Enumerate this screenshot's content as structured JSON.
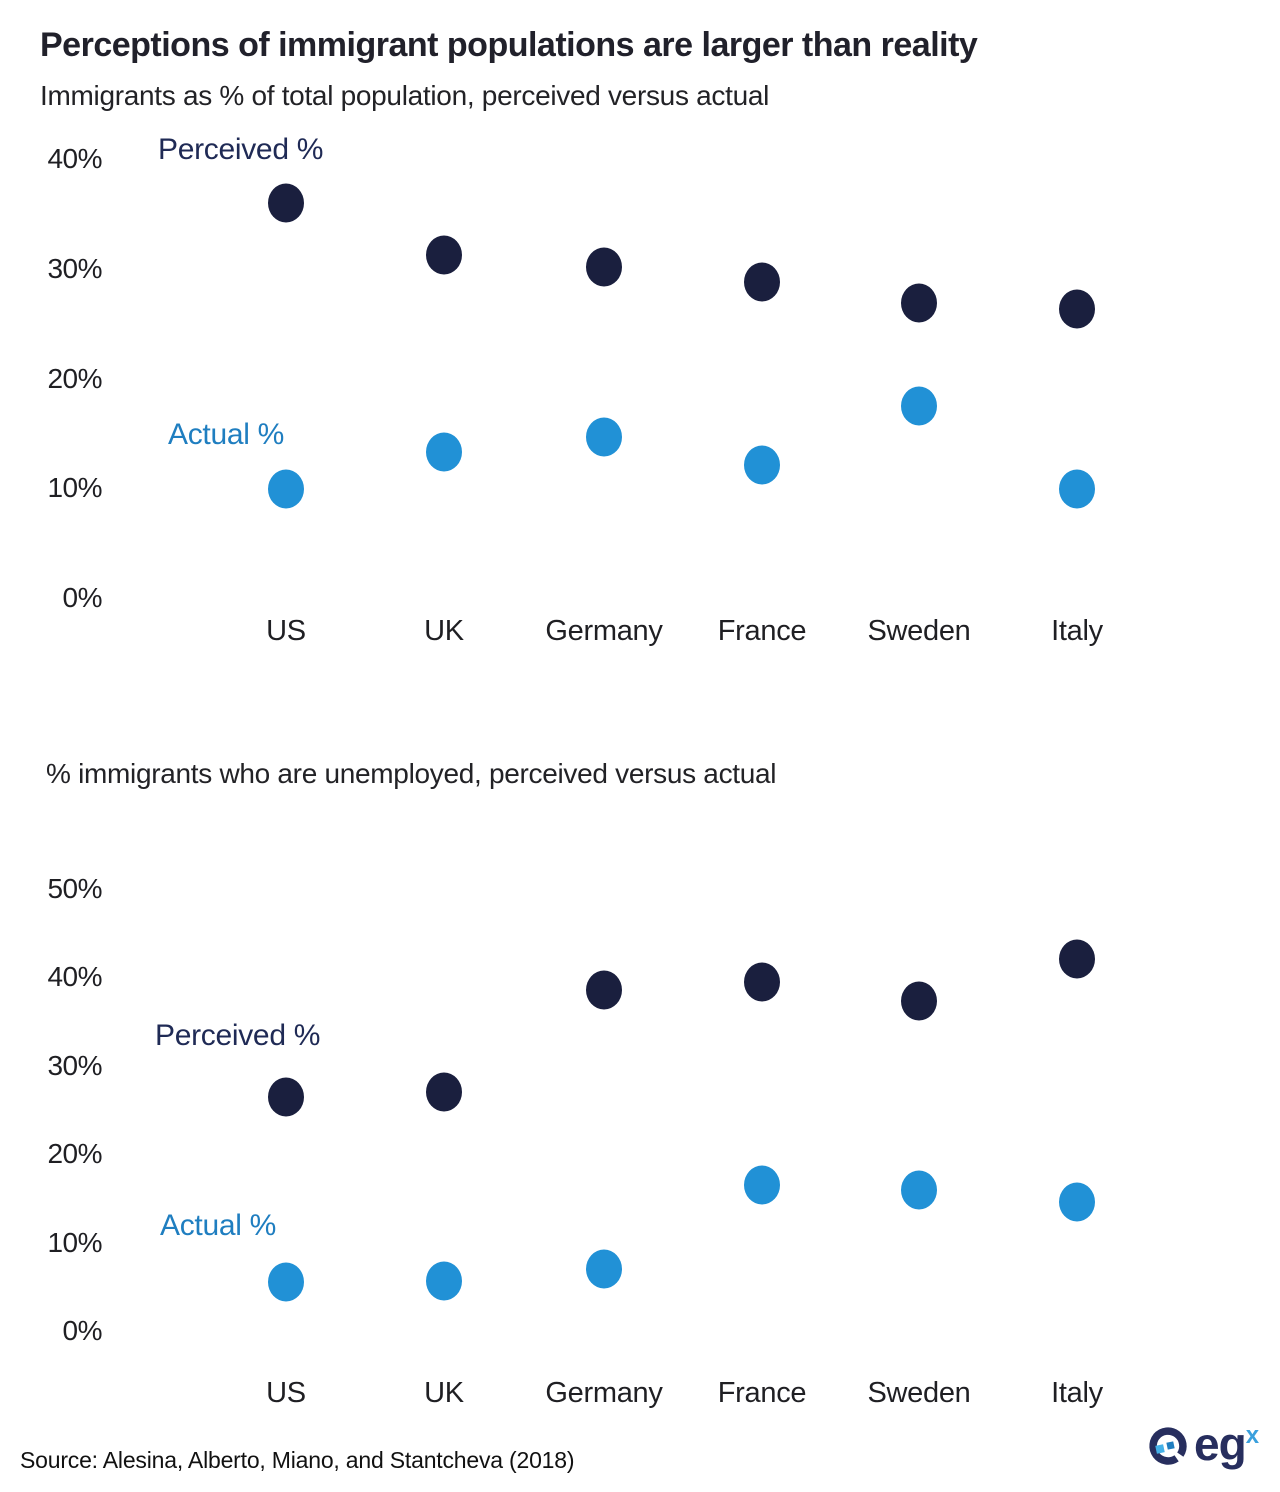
{
  "page": {
    "title": "Perceptions of immigrant populations are larger than reality",
    "source": "Source: Alesina, Alberto, Miano, and Stantcheva (2018)",
    "logo": {
      "text": "eg",
      "sup": "x"
    }
  },
  "colors": {
    "perceived_dot": "#1a1f3e",
    "actual_dot": "#2191d6",
    "perceived_label": "#1f2a55",
    "actual_label": "#1f7ec0"
  },
  "chart_data": [
    {
      "type": "scatter",
      "title": "Immigrants as % of total population, perceived versus actual",
      "categories": [
        "US",
        "UK",
        "Germany",
        "France",
        "Sweden",
        "Italy"
      ],
      "series": [
        {
          "name": "Perceived %",
          "values": [
            36.1,
            31.4,
            30.3,
            28.9,
            27.0,
            26.4
          ]
        },
        {
          "name": "Actual %",
          "values": [
            10.0,
            13.4,
            14.8,
            12.2,
            17.6,
            10.0
          ]
        }
      ],
      "ylim": [
        0,
        40
      ],
      "yticks": [
        "0%",
        "10%",
        "20%",
        "30%",
        "40%"
      ],
      "grid": "off",
      "legend_position": "inline-left"
    },
    {
      "type": "scatter",
      "title": "% immigrants who are unemployed, perceived versus actual",
      "categories": [
        "US",
        "UK",
        "Germany",
        "France",
        "Sweden",
        "Italy"
      ],
      "series": [
        {
          "name": "Perceived %",
          "values": [
            26.6,
            27.1,
            38.7,
            39.5,
            37.4,
            42.2
          ]
        },
        {
          "name": "Actual %",
          "values": [
            5.6,
            5.8,
            7.1,
            16.6,
            16.0,
            14.7
          ]
        }
      ],
      "ylim": [
        0,
        50
      ],
      "yticks": [
        "0%",
        "10%",
        "20%",
        "30%",
        "40%",
        "50%"
      ],
      "grid": "off",
      "legend_position": "inline-left"
    }
  ]
}
